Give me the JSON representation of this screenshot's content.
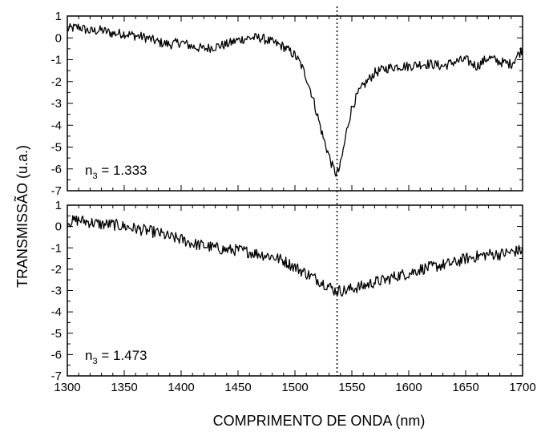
{
  "chart_data": {
    "type": "line",
    "xlabel": "COMPRIMENTO DE ONDA (nm)",
    "ylabel": "TRANSMISSÃO (u.a.)",
    "xlim": [
      1300,
      1700
    ],
    "ylim": [
      -7,
      1
    ],
    "x_ticks": [
      1300,
      1350,
      1400,
      1450,
      1500,
      1550,
      1600,
      1650,
      1700
    ],
    "y_ticks": [
      1,
      0,
      -1,
      -2,
      -3,
      -4,
      -5,
      -6,
      -7
    ],
    "reference_line_x": 1537,
    "grid": false,
    "panels": [
      {
        "annotation": {
          "main": "n",
          "sub": "3",
          "rest": " = 1.333"
        },
        "line_color": "#000000",
        "series": {
          "x": [
            1300,
            1310,
            1320,
            1330,
            1340,
            1350,
            1360,
            1370,
            1380,
            1390,
            1400,
            1410,
            1420,
            1430,
            1440,
            1450,
            1460,
            1470,
            1480,
            1490,
            1500,
            1505,
            1510,
            1515,
            1520,
            1525,
            1530,
            1533,
            1536,
            1538,
            1540,
            1543,
            1546,
            1550,
            1555,
            1560,
            1565,
            1570,
            1575,
            1580,
            1590,
            1600,
            1610,
            1620,
            1630,
            1640,
            1650,
            1660,
            1670,
            1680,
            1690,
            1700
          ],
          "y": [
            0.4,
            0.5,
            0.3,
            0.35,
            0.2,
            0.2,
            0.1,
            0.0,
            -0.2,
            -0.3,
            -0.2,
            -0.4,
            -0.5,
            -0.4,
            -0.3,
            -0.1,
            0.0,
            0.0,
            -0.2,
            -0.4,
            -0.8,
            -1.2,
            -1.8,
            -2.6,
            -3.6,
            -4.6,
            -5.4,
            -5.9,
            -6.2,
            -6.15,
            -5.8,
            -5.0,
            -4.1,
            -3.2,
            -2.6,
            -2.2,
            -1.9,
            -1.6,
            -1.5,
            -1.4,
            -1.3,
            -1.3,
            -1.2,
            -1.2,
            -1.3,
            -1.1,
            -1.0,
            -1.3,
            -0.9,
            -1.1,
            -1.2,
            -0.5
          ]
        }
      },
      {
        "annotation": {
          "main": "n",
          "sub": "3",
          "rest": " = 1.473"
        },
        "line_color": "#000000",
        "series": {
          "x": [
            1300,
            1310,
            1320,
            1330,
            1340,
            1350,
            1360,
            1370,
            1380,
            1390,
            1400,
            1410,
            1420,
            1430,
            1440,
            1450,
            1460,
            1470,
            1480,
            1490,
            1500,
            1510,
            1520,
            1530,
            1535,
            1540,
            1545,
            1550,
            1560,
            1570,
            1580,
            1590,
            1600,
            1610,
            1620,
            1630,
            1640,
            1650,
            1660,
            1670,
            1680,
            1690,
            1700
          ],
          "y": [
            0.2,
            0.3,
            0.2,
            0.1,
            0.1,
            0.0,
            -0.1,
            -0.2,
            -0.3,
            -0.5,
            -0.6,
            -0.8,
            -0.9,
            -1.0,
            -1.1,
            -1.1,
            -1.2,
            -1.3,
            -1.4,
            -1.6,
            -1.9,
            -2.2,
            -2.5,
            -2.8,
            -3.0,
            -3.0,
            -3.0,
            -2.9,
            -2.8,
            -2.6,
            -2.5,
            -2.3,
            -2.2,
            -2.0,
            -1.9,
            -1.8,
            -1.7,
            -1.5,
            -1.4,
            -1.3,
            -1.3,
            -1.2,
            -1.1
          ]
        }
      }
    ]
  }
}
